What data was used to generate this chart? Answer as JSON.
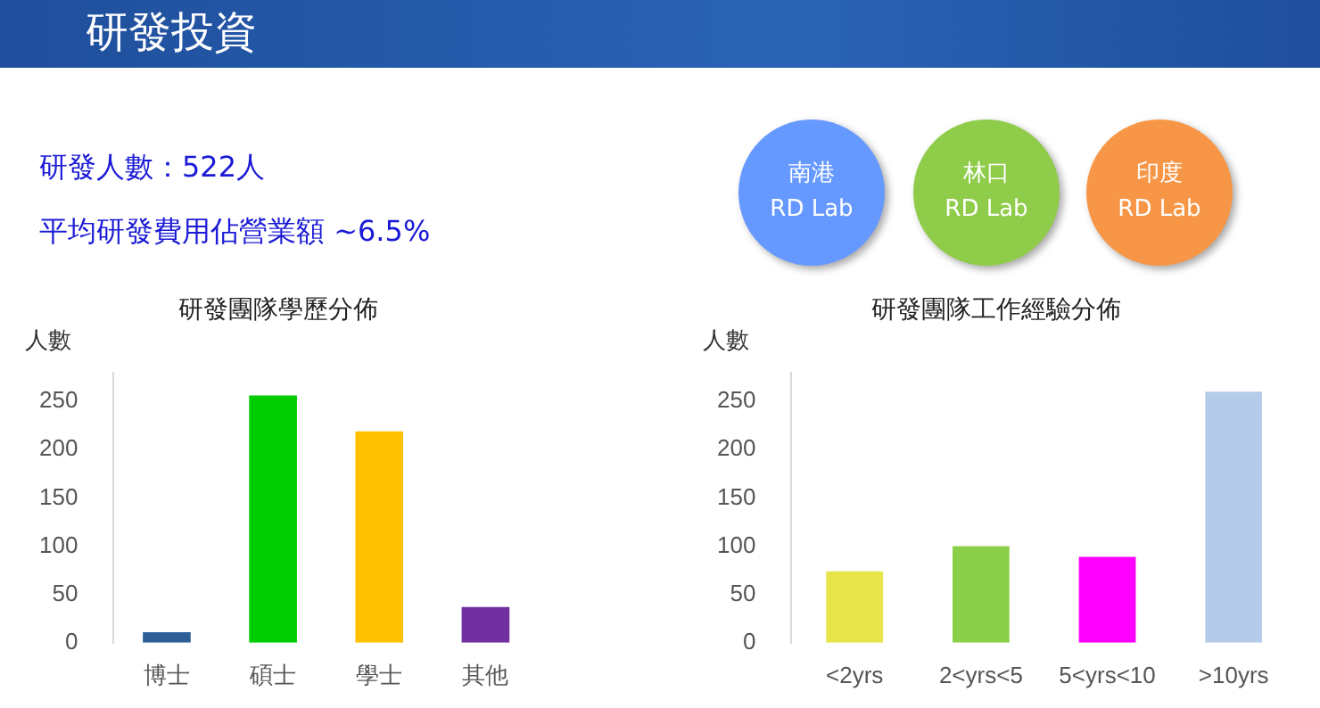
{
  "chart_data": [
    {
      "type": "other",
      "title": "研發投資",
      "annotations": [
        "研發人數：522人",
        "平均研發費用佔營業額 ~6.5%",
        "南港\nRD Lab",
        "林口\nRD Lab",
        "印度\nRD Lab"
      ],
      "colors": [
        null,
        null,
        "#6699ff",
        "#8fcc4a",
        "#f79646"
      ]
    },
    {
      "type": "bar",
      "title": "研發團隊學歷分佈",
      "ylabel": "人數",
      "categories": [
        "博士",
        "碩士",
        "學士",
        "其他"
      ],
      "values": [
        11,
        256,
        219,
        37
      ],
      "colors": [
        "#2e5f96",
        "#00cc00",
        "#ffc000",
        "#7030a0"
      ],
      "ylim": [
        0,
        280
      ],
      "yticks": [
        0,
        50,
        100,
        150,
        200,
        250
      ]
    },
    {
      "type": "bar",
      "title": "研發團隊工作經驗分佈",
      "ylabel": "人數",
      "categories": [
        "<2yrs",
        "2<yrs<5",
        "5<yrs<10",
        ">10yrs"
      ],
      "values": [
        74,
        100,
        89,
        260
      ],
      "colors": [
        "#e6e64a",
        "#8bcf4a",
        "#ff00ff",
        "#b4cbea"
      ],
      "ylim": [
        0,
        280
      ],
      "yticks": [
        0,
        50,
        100,
        150,
        200,
        250
      ]
    }
  ]
}
